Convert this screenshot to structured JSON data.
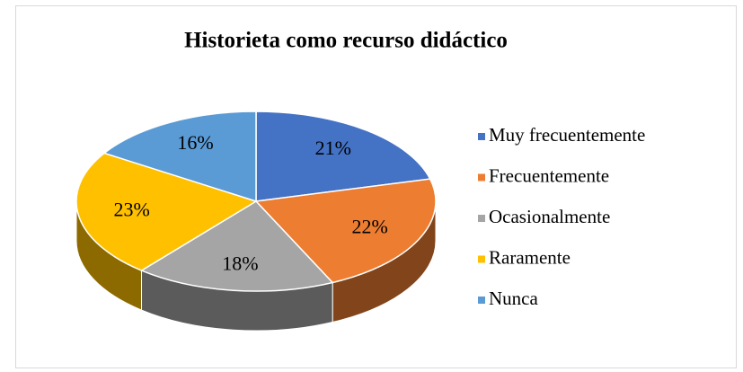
{
  "chart_data": {
    "type": "pie",
    "title": "Historieta como recurso didáctico",
    "categories": [
      "Muy frecuentemente",
      "Frecuentemente",
      "Ocasionalmente",
      "Raramente",
      "Nunca"
    ],
    "values": [
      21,
      22,
      18,
      23,
      16
    ],
    "value_labels": [
      "21%",
      "22%",
      "18%",
      "23%",
      "16%"
    ],
    "colors": [
      "#4472c4",
      "#ed7d31",
      "#a5a5a5",
      "#ffc000",
      "#5b9bd5"
    ],
    "legend": "right"
  }
}
